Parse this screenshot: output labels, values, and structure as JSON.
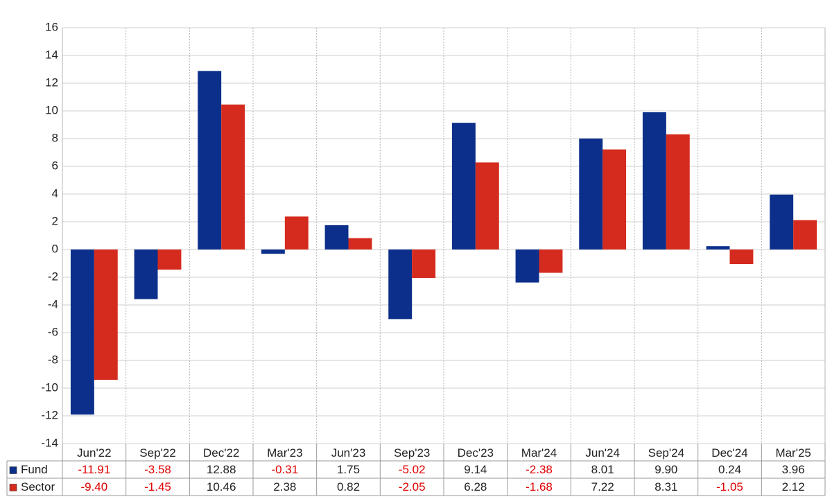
{
  "chart_data": {
    "type": "bar",
    "categories": [
      "Jun'22",
      "Sep'22",
      "Dec'22",
      "Mar'23",
      "Jun'23",
      "Sep'23",
      "Dec'23",
      "Mar'24",
      "Jun'24",
      "Sep'24",
      "Dec'24",
      "Mar'25"
    ],
    "series": [
      {
        "name": "Fund",
        "color": "#0b2f8a",
        "values": [
          -11.91,
          -3.58,
          12.88,
          -0.31,
          1.75,
          -5.02,
          9.14,
          -2.38,
          8.01,
          9.9,
          0.24,
          3.96
        ],
        "value_labels": [
          "-11.91",
          "-3.58",
          "12.88",
          "-0.31",
          "1.75",
          "-5.02",
          "9.14",
          "-2.38",
          "8.01",
          "9.90",
          "0.24",
          "3.96"
        ]
      },
      {
        "name": "Sector",
        "color": "#d52b1e",
        "values": [
          -9.4,
          -1.45,
          10.46,
          2.38,
          0.82,
          -2.05,
          6.28,
          -1.68,
          7.22,
          8.31,
          -1.05,
          2.12
        ],
        "value_labels": [
          "-9.40",
          "-1.45",
          "10.46",
          "2.38",
          "0.82",
          "-2.05",
          "6.28",
          "-1.68",
          "7.22",
          "8.31",
          "-1.05",
          "2.12"
        ]
      }
    ],
    "ylim": [
      -14,
      16
    ],
    "yticks": [
      -14,
      -12,
      -10,
      -8,
      -6,
      -4,
      -2,
      0,
      2,
      4,
      6,
      8,
      10,
      12,
      14,
      16
    ],
    "grid": true,
    "negative_color": "#e00000"
  }
}
